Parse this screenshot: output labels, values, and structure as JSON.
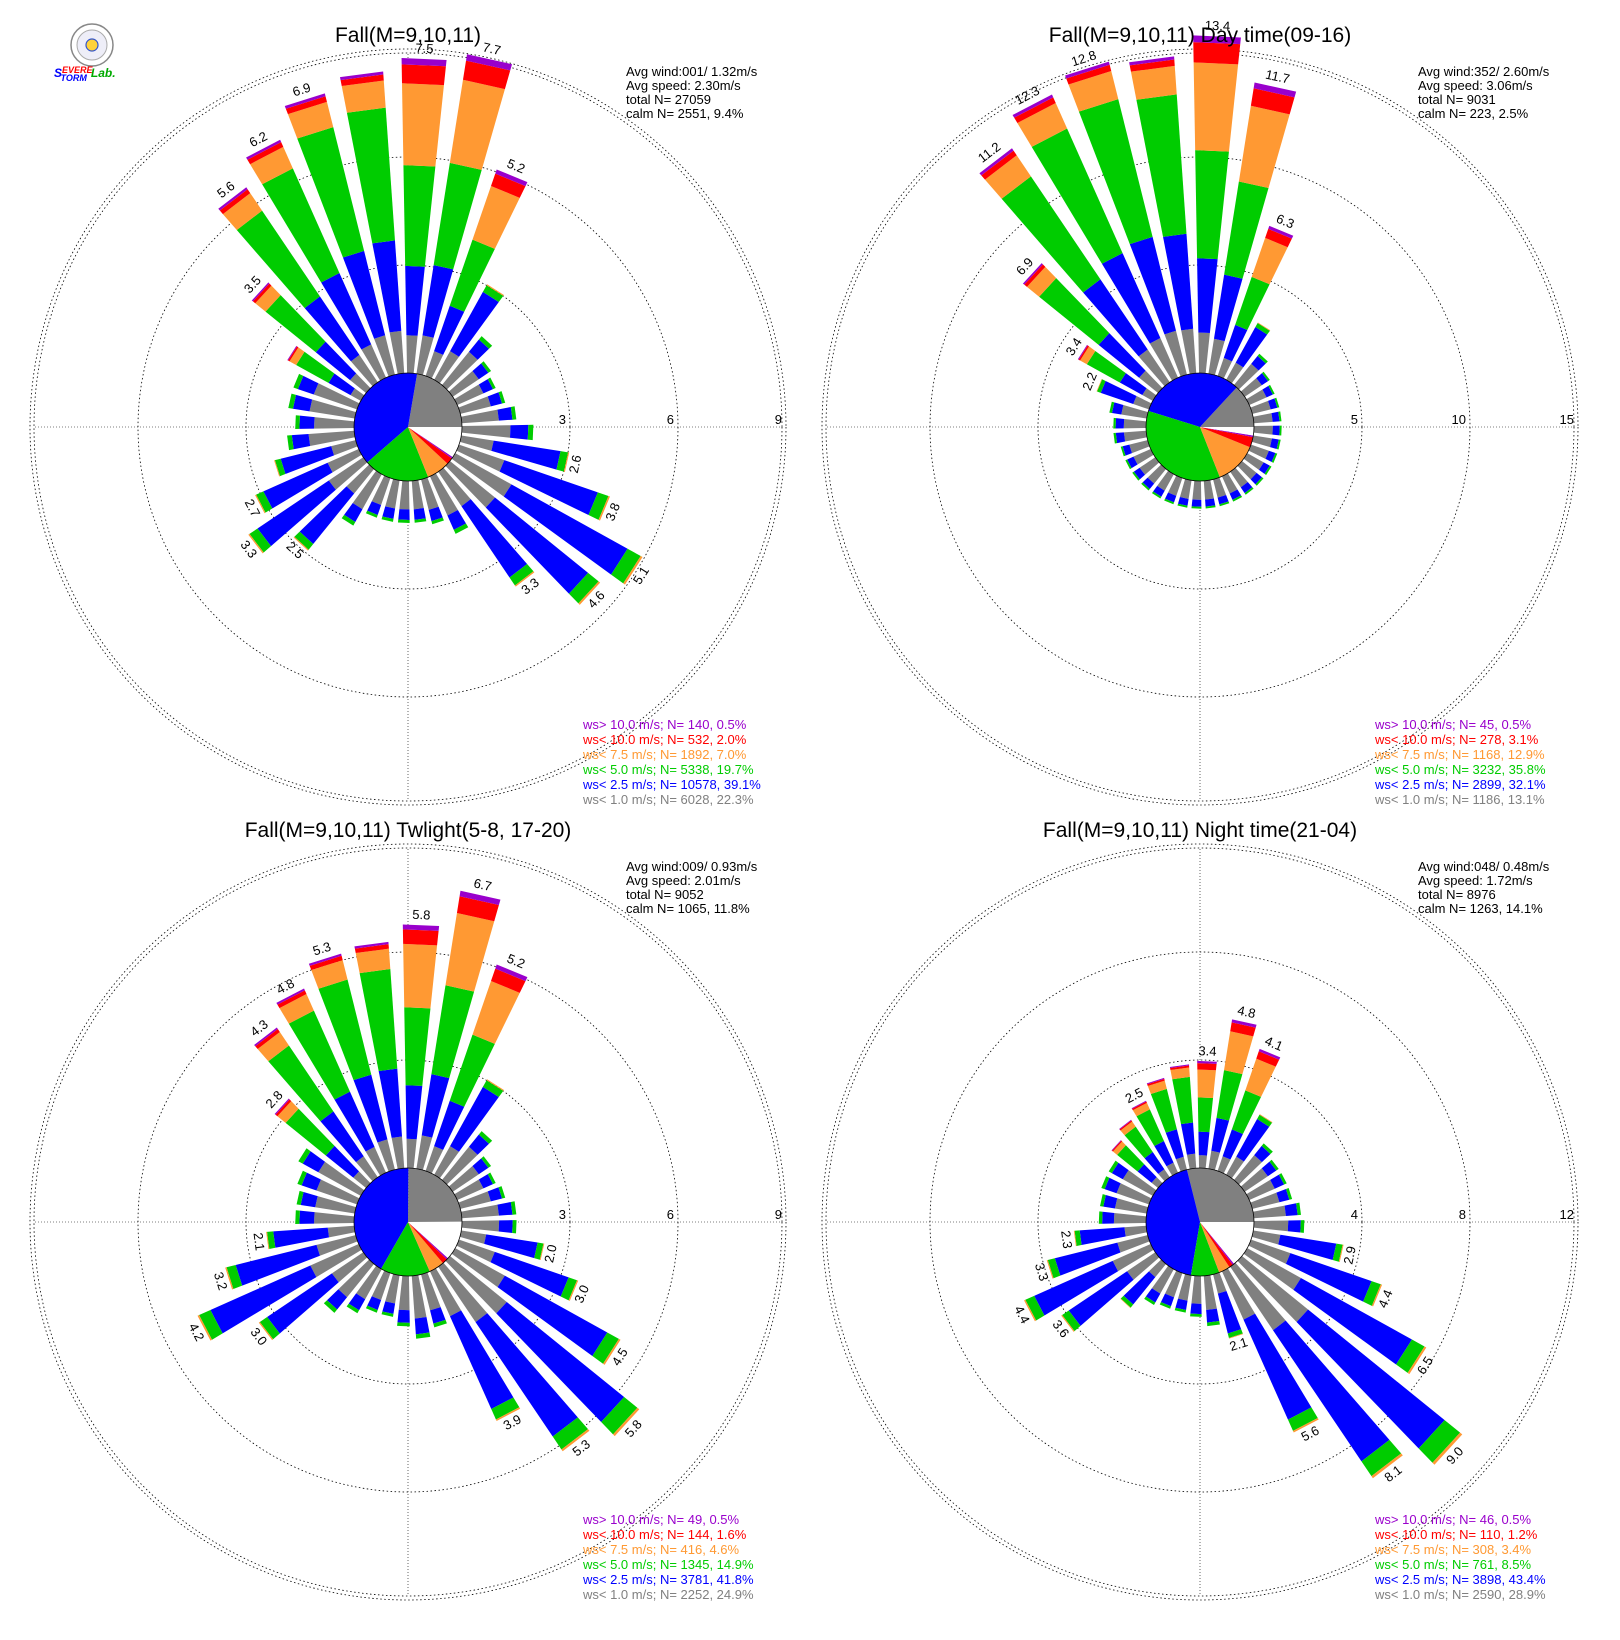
{
  "logo": {
    "alt": "Severe Storm Lab.",
    "parts": [
      "S",
      "EVERE",
      "TORM",
      "Lab."
    ]
  },
  "colors": {
    "gray": "#808080",
    "blue": "#0000ff",
    "green": "#00cc00",
    "orange": "#ff9933",
    "red": "#ff0000",
    "purple": "#9900cc",
    "white": "#ffffff"
  },
  "legend_labels": [
    "ws> 10.0 m/s; N=",
    "ws< 10.0 m/s; N=",
    "ws<  7.5 m/s; N=",
    "ws<  5.0 m/s; N=",
    "ws<  2.5 m/s; N=",
    "ws<  1.0 m/s; N="
  ],
  "stats_labels": {
    "avg_wind": "Avg wind:",
    "avg_speed": "Avg speed:",
    "total": "total N=",
    "calm": "calm N="
  },
  "chart_data": [
    {
      "type": "wind-rose",
      "title": "Fall(M=9,10,11)",
      "avg_wind": "001/ 1.32m/s",
      "avg_speed": "2.30m/s",
      "total_n": "27059",
      "calm": "2551,   9.4%",
      "ring_labels": [
        "3",
        "6",
        "9"
      ],
      "ring_max": 9,
      "pie_fractions": [
        0.223,
        0.391,
        0.197,
        0.07,
        0.02,
        0.005,
        0.094
      ],
      "legend_values": [
        "140,  0.5%",
        "532,  2.0%",
        "1892,  7.0%",
        "5338, 19.7%",
        "10578, 39.1%",
        "6028, 22.3%"
      ],
      "bars": [
        {
          "dir": 2.5,
          "total": 7.5,
          "label": "7.5"
        },
        {
          "dir": 12.5,
          "total": 7.7,
          "label": "7.7"
        },
        {
          "dir": 22.5,
          "total": 5.2,
          "label": "5.2"
        },
        {
          "dir": 32.5,
          "total": 2.6
        },
        {
          "dir": 42.5,
          "total": 1.5
        },
        {
          "dir": 52.5,
          "total": 1.1
        },
        {
          "dir": 62.5,
          "total": 1.0
        },
        {
          "dir": 72.5,
          "total": 1.1
        },
        {
          "dir": 82.5,
          "total": 1.3
        },
        {
          "dir": 92.5,
          "total": 1.7
        },
        {
          "dir": 102.5,
          "total": 2.6,
          "label": "2.6"
        },
        {
          "dir": 112.5,
          "total": 3.8,
          "label": "3.8"
        },
        {
          "dir": 122.5,
          "total": 5.1,
          "label": "5.1"
        },
        {
          "dir": 132.5,
          "total": 4.6,
          "label": "4.6"
        },
        {
          "dir": 142.5,
          "total": 3.3,
          "label": "3.3"
        },
        {
          "dir": 152.5,
          "total": 1.5
        },
        {
          "dir": 162.5,
          "total": 1.1
        },
        {
          "dir": 172.5,
          "total": 1.0
        },
        {
          "dir": 182.5,
          "total": 1.0
        },
        {
          "dir": 192.5,
          "total": 1.0
        },
        {
          "dir": 202.5,
          "total": 1.0
        },
        {
          "dir": 212.5,
          "total": 1.4
        },
        {
          "dir": 222.5,
          "total": 2.5,
          "label": "2.5"
        },
        {
          "dir": 232.5,
          "total": 3.3,
          "label": "3.3"
        },
        {
          "dir": 242.5,
          "total": 2.7,
          "label": "2.7"
        },
        {
          "dir": 252.5,
          "total": 2.0
        },
        {
          "dir": 262.5,
          "total": 1.6
        },
        {
          "dir": 272.5,
          "total": 1.4
        },
        {
          "dir": 282.5,
          "total": 1.6
        },
        {
          "dir": 292.5,
          "total": 1.6
        },
        {
          "dir": 302.5,
          "total": 2.0
        },
        {
          "dir": 312.5,
          "total": 3.5,
          "label": "3.5"
        },
        {
          "dir": 322.5,
          "total": 5.6,
          "label": "5.6"
        },
        {
          "dir": 332.5,
          "total": 6.2,
          "label": "6.2"
        },
        {
          "dir": 342.5,
          "total": 6.9,
          "label": "6.9"
        },
        {
          "dir": 352.5,
          "total": 7.2
        }
      ]
    },
    {
      "type": "wind-rose",
      "title": "Fall(M=9,10,11) Day time(09-16)",
      "avg_wind": "352/ 2.60m/s",
      "avg_speed": "3.06m/s",
      "total_n": "9031",
      "calm": "223,   2.5%",
      "ring_labels": [
        "5",
        "10",
        "15"
      ],
      "ring_max": 15,
      "pie_fractions": [
        0.131,
        0.321,
        0.358,
        0.129,
        0.031,
        0.005,
        0.025
      ],
      "legend_values": [
        "45,  0.5%",
        "278,  3.1%",
        "1168, 12.9%",
        "3232, 35.8%",
        "2899, 32.1%",
        "1186, 13.1%"
      ],
      "bars": [
        {
          "dir": 2.5,
          "total": 13.4,
          "label": "13.4"
        },
        {
          "dir": 12.5,
          "total": 11.7,
          "label": "11.7"
        },
        {
          "dir": 22.5,
          "total": 6.3,
          "label": "6.3"
        },
        {
          "dir": 32.5,
          "total": 2.6
        },
        {
          "dir": 42.5,
          "total": 1.6
        },
        {
          "dir": 52.5,
          "total": 1.2
        },
        {
          "dir": 62.5,
          "total": 1.1
        },
        {
          "dir": 72.5,
          "total": 1.1
        },
        {
          "dir": 82.5,
          "total": 1.1
        },
        {
          "dir": 92.5,
          "total": 1.1
        },
        {
          "dir": 102.5,
          "total": 1.1
        },
        {
          "dir": 112.5,
          "total": 1.1
        },
        {
          "dir": 122.5,
          "total": 1.1
        },
        {
          "dir": 132.5,
          "total": 1.1
        },
        {
          "dir": 142.5,
          "total": 1.1
        },
        {
          "dir": 152.5,
          "total": 1.1
        },
        {
          "dir": 162.5,
          "total": 1.1
        },
        {
          "dir": 172.5,
          "total": 1.1
        },
        {
          "dir": 182.5,
          "total": 1.1
        },
        {
          "dir": 192.5,
          "total": 1.1
        },
        {
          "dir": 202.5,
          "total": 1.1
        },
        {
          "dir": 212.5,
          "total": 1.1
        },
        {
          "dir": 222.5,
          "total": 1.1
        },
        {
          "dir": 232.5,
          "total": 1.1
        },
        {
          "dir": 242.5,
          "total": 1.1
        },
        {
          "dir": 252.5,
          "total": 1.1
        },
        {
          "dir": 262.5,
          "total": 1.3
        },
        {
          "dir": 272.5,
          "total": 1.3
        },
        {
          "dir": 282.5,
          "total": 1.5
        },
        {
          "dir": 292.5,
          "total": 2.2,
          "label": "2.2"
        },
        {
          "dir": 302.5,
          "total": 3.4,
          "label": "3.4"
        },
        {
          "dir": 312.5,
          "total": 6.9,
          "label": "6.9"
        },
        {
          "dir": 322.5,
          "total": 11.2,
          "label": "11.2"
        },
        {
          "dir": 332.5,
          "total": 12.3,
          "label": "12.3"
        },
        {
          "dir": 342.5,
          "total": 12.8,
          "label": "12.8"
        },
        {
          "dir": 352.5,
          "total": 12.6
        }
      ]
    },
    {
      "type": "wind-rose",
      "title": "Fall(M=9,10,11) Twlight(5-8, 17-20)",
      "avg_wind": "009/ 0.93m/s",
      "avg_speed": "2.01m/s",
      "total_n": "9052",
      "calm": "1065,  11.8%",
      "ring_labels": [
        "3",
        "6",
        "9"
      ],
      "ring_max": 9,
      "pie_fractions": [
        0.249,
        0.418,
        0.149,
        0.046,
        0.016,
        0.005,
        0.118
      ],
      "legend_values": [
        "49,  0.5%",
        "144,  1.6%",
        "416,  4.6%",
        "1345, 14.9%",
        "3781, 41.8%",
        "2252, 24.9%"
      ],
      "bars": [
        {
          "dir": 2.5,
          "total": 5.8,
          "label": "5.8"
        },
        {
          "dir": 12.5,
          "total": 6.7,
          "label": "6.7"
        },
        {
          "dir": 22.5,
          "total": 5.2,
          "label": "5.2"
        },
        {
          "dir": 32.5,
          "total": 2.6
        },
        {
          "dir": 42.5,
          "total": 1.5
        },
        {
          "dir": 52.5,
          "total": 1.1
        },
        {
          "dir": 62.5,
          "total": 1.0
        },
        {
          "dir": 72.5,
          "total": 1.1
        },
        {
          "dir": 82.5,
          "total": 1.3
        },
        {
          "dir": 92.5,
          "total": 1.3
        },
        {
          "dir": 102.5,
          "total": 2.0,
          "label": "2.0"
        },
        {
          "dir": 112.5,
          "total": 3.0,
          "label": "3.0"
        },
        {
          "dir": 122.5,
          "total": 4.5,
          "label": "4.5"
        },
        {
          "dir": 132.5,
          "total": 5.8,
          "label": "5.8"
        },
        {
          "dir": 142.5,
          "total": 5.3,
          "label": "5.3"
        },
        {
          "dir": 152.5,
          "total": 3.9,
          "label": "3.9"
        },
        {
          "dir": 162.5,
          "total": 1.3
        },
        {
          "dir": 172.5,
          "total": 1.5
        },
        {
          "dir": 182.5,
          "total": 1.2
        },
        {
          "dir": 192.5,
          "total": 1.0
        },
        {
          "dir": 202.5,
          "total": 1.0
        },
        {
          "dir": 212.5,
          "total": 1.2
        },
        {
          "dir": 222.5,
          "total": 1.5
        },
        {
          "dir": 232.5,
          "total": 3.0,
          "label": "3.0"
        },
        {
          "dir": 242.5,
          "total": 4.2,
          "label": "4.2"
        },
        {
          "dir": 252.5,
          "total": 3.2,
          "label": "3.2"
        },
        {
          "dir": 262.5,
          "total": 2.1,
          "label": "2.1"
        },
        {
          "dir": 272.5,
          "total": 1.4
        },
        {
          "dir": 282.5,
          "total": 1.4
        },
        {
          "dir": 292.5,
          "total": 1.5
        },
        {
          "dir": 302.5,
          "total": 1.7
        },
        {
          "dir": 312.5,
          "total": 2.8,
          "label": "2.8"
        },
        {
          "dir": 322.5,
          "total": 4.3,
          "label": "4.3"
        },
        {
          "dir": 332.5,
          "total": 4.8,
          "label": "4.8"
        },
        {
          "dir": 342.5,
          "total": 5.3,
          "label": "5.3"
        },
        {
          "dir": 352.5,
          "total": 5.4
        }
      ]
    },
    {
      "type": "wind-rose",
      "title": "Fall(M=9,10,11) Night time(21-04)",
      "avg_wind": "048/ 0.48m/s",
      "avg_speed": "1.72m/s",
      "total_n": "8976",
      "calm": "1263,  14.1%",
      "ring_labels": [
        "4",
        "8",
        "12"
      ],
      "ring_max": 12,
      "pie_fractions": [
        0.289,
        0.434,
        0.085,
        0.034,
        0.012,
        0.005,
        0.141
      ],
      "legend_values": [
        "46,  0.5%",
        "110,  1.2%",
        "308,  3.4%",
        "761,  8.5%",
        "3898, 43.4%",
        "2590, 28.9%"
      ],
      "bars": [
        {
          "dir": 2.5,
          "total": 3.4,
          "label": "3.4"
        },
        {
          "dir": 12.5,
          "total": 4.8,
          "label": "4.8"
        },
        {
          "dir": 22.5,
          "total": 4.1,
          "label": "4.1"
        },
        {
          "dir": 32.5,
          "total": 2.2
        },
        {
          "dir": 42.5,
          "total": 1.5
        },
        {
          "dir": 52.5,
          "total": 1.3
        },
        {
          "dir": 62.5,
          "total": 1.3
        },
        {
          "dir": 72.5,
          "total": 1.3
        },
        {
          "dir": 82.5,
          "total": 1.5
        },
        {
          "dir": 92.5,
          "total": 1.6
        },
        {
          "dir": 102.5,
          "total": 2.9,
          "label": "2.9"
        },
        {
          "dir": 112.5,
          "total": 4.4,
          "label": "4.4"
        },
        {
          "dir": 122.5,
          "total": 6.5,
          "label": "6.5"
        },
        {
          "dir": 132.5,
          "total": 9.0,
          "label": "9.0"
        },
        {
          "dir": 142.5,
          "total": 8.1,
          "label": "8.1"
        },
        {
          "dir": 152.5,
          "total": 5.6,
          "label": "5.6"
        },
        {
          "dir": 162.5,
          "total": 2.1,
          "label": "2.1"
        },
        {
          "dir": 172.5,
          "total": 1.6
        },
        {
          "dir": 182.5,
          "total": 1.3
        },
        {
          "dir": 192.5,
          "total": 1.2
        },
        {
          "dir": 202.5,
          "total": 1.2
        },
        {
          "dir": 212.5,
          "total": 1.3
        },
        {
          "dir": 222.5,
          "total": 1.8
        },
        {
          "dir": 232.5,
          "total": 3.6,
          "label": "3.6"
        },
        {
          "dir": 242.5,
          "total": 4.4,
          "label": "4.4"
        },
        {
          "dir": 252.5,
          "total": 3.3,
          "label": "3.3"
        },
        {
          "dir": 262.5,
          "total": 2.3,
          "label": "2.3"
        },
        {
          "dir": 272.5,
          "total": 1.5
        },
        {
          "dir": 282.5,
          "total": 1.5
        },
        {
          "dir": 292.5,
          "total": 1.6
        },
        {
          "dir": 302.5,
          "total": 1.6
        },
        {
          "dir": 312.5,
          "total": 1.9
        },
        {
          "dir": 322.5,
          "total": 2.2
        },
        {
          "dir": 332.5,
          "total": 2.5,
          "label": "2.5"
        },
        {
          "dir": 342.5,
          "total": 3.0
        },
        {
          "dir": 352.5,
          "total": 3.3
        }
      ]
    }
  ]
}
